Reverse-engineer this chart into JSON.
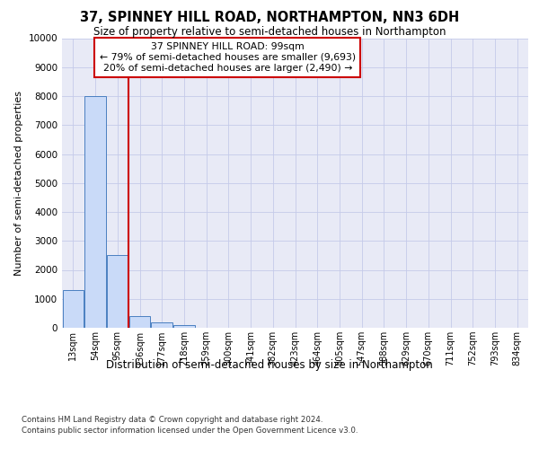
{
  "title": "37, SPINNEY HILL ROAD, NORTHAMPTON, NN3 6DH",
  "subtitle": "Size of property relative to semi-detached houses in Northampton",
  "xlabel_bottom": "Distribution of semi-detached houses by size in Northampton",
  "ylabel": "Number of semi-detached properties",
  "footer_line1": "Contains HM Land Registry data © Crown copyright and database right 2024.",
  "footer_line2": "Contains public sector information licensed under the Open Government Licence v3.0.",
  "bin_labels": [
    "13sqm",
    "54sqm",
    "95sqm",
    "136sqm",
    "177sqm",
    "218sqm",
    "259sqm",
    "300sqm",
    "341sqm",
    "382sqm",
    "423sqm",
    "464sqm",
    "505sqm",
    "547sqm",
    "588sqm",
    "629sqm",
    "670sqm",
    "711sqm",
    "752sqm",
    "793sqm",
    "834sqm"
  ],
  "bar_values": [
    1300,
    8000,
    2520,
    400,
    175,
    100,
    0,
    0,
    0,
    0,
    0,
    0,
    0,
    0,
    0,
    0,
    0,
    0,
    0,
    0,
    0
  ],
  "bar_color": "#c9daf8",
  "bar_edgecolor": "#4a7fc1",
  "grid_color": "#c5cae9",
  "background_color": "#e8eaf6",
  "vline_color": "#cc0000",
  "vline_x": 2.5,
  "ylim": [
    0,
    10000
  ],
  "yticks": [
    0,
    1000,
    2000,
    3000,
    4000,
    5000,
    6000,
    7000,
    8000,
    9000,
    10000
  ],
  "annotation_line1": "37 SPINNEY HILL ROAD: 99sqm",
  "annotation_line2": "← 79% of semi-detached houses are smaller (9,693)",
  "annotation_line3": "20% of semi-detached houses are larger (2,490) →",
  "annotation_box_color": "#cc0000"
}
